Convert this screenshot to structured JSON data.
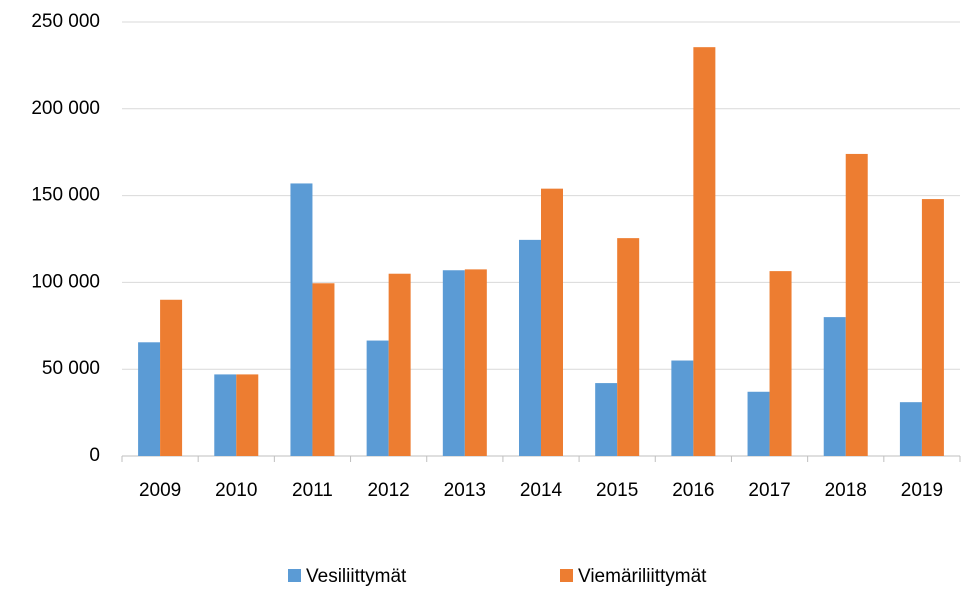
{
  "chart_data": {
    "type": "bar",
    "categories": [
      "2009",
      "2010",
      "2011",
      "2012",
      "2013",
      "2014",
      "2015",
      "2016",
      "2017",
      "2018",
      "2019"
    ],
    "series": [
      {
        "name": "Vesiliittymät",
        "color": "#5b9bd5",
        "values": [
          65500,
          47000,
          157000,
          66500,
          107000,
          124500,
          42000,
          55000,
          37000,
          80000,
          31000
        ]
      },
      {
        "name": "Viemäriliittymät",
        "color": "#ed7d31",
        "values": [
          90000,
          47000,
          99500,
          105000,
          107500,
          154000,
          125500,
          235500,
          106500,
          174000,
          148000
        ]
      }
    ],
    "ylim": [
      0,
      250000
    ],
    "yticks": [
      {
        "value": 0,
        "label": "0"
      },
      {
        "value": 50000,
        "label": "50 000"
      },
      {
        "value": 100000,
        "label": "100 000"
      },
      {
        "value": 150000,
        "label": "150 000"
      },
      {
        "value": 200000,
        "label": "200 000"
      },
      {
        "value": 250000,
        "label": "250 000"
      }
    ],
    "grid": true,
    "legend": "bottom"
  }
}
